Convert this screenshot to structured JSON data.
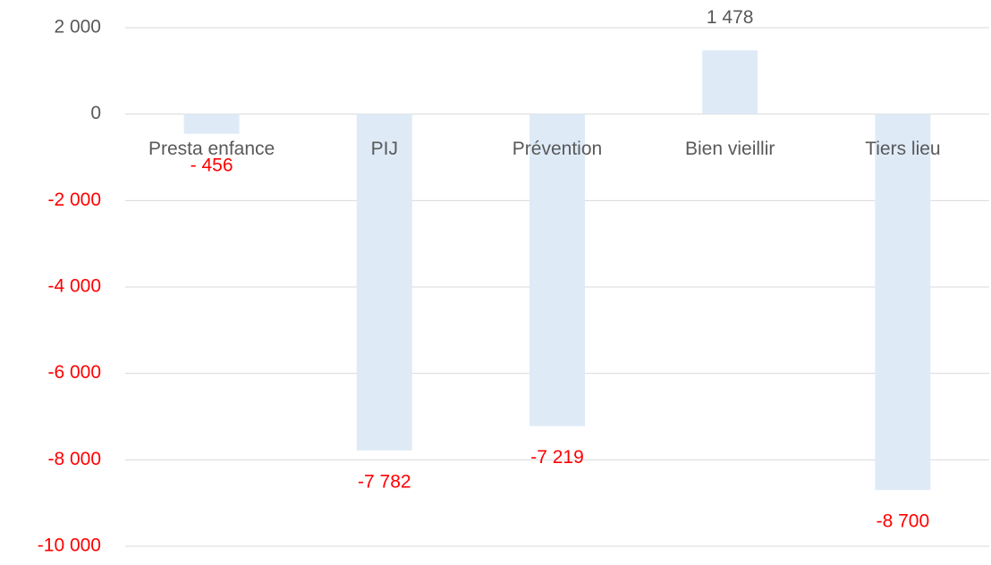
{
  "chart_data": {
    "type": "bar",
    "categories": [
      "Presta enfance",
      "PIJ",
      "Prévention",
      "Bien vieillir",
      "Tiers lieu"
    ],
    "values": [
      -456,
      -7782,
      -7219,
      1478,
      -8700
    ],
    "value_labels": [
      "- 456",
      "-7 782",
      "-7 219",
      "1 478",
      "-8 700"
    ],
    "color": "#deebf7",
    "label_color": "#595959",
    "negative_color": "#ff0000",
    "ylim": [
      -10000,
      2000
    ],
    "yticks": [
      {
        "value": -10000,
        "label": "-10 000"
      },
      {
        "value": -8000,
        "label": "-8 000"
      },
      {
        "value": -6000,
        "label": "-6 000"
      },
      {
        "value": -4000,
        "label": "-4 000"
      },
      {
        "value": -2000,
        "label": "-2 000"
      },
      0,
      {
        "value": 2000,
        "label": "2 000"
      }
    ],
    "grid": true
  }
}
